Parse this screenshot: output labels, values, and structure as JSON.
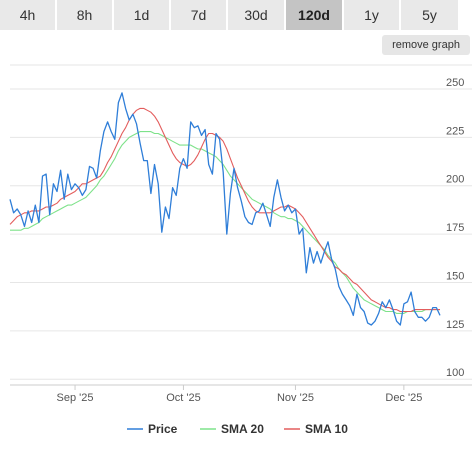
{
  "tabs": [
    {
      "label": "4h",
      "active": false
    },
    {
      "label": "8h",
      "active": false
    },
    {
      "label": "1d",
      "active": false
    },
    {
      "label": "7d",
      "active": false
    },
    {
      "label": "30d",
      "active": false
    },
    {
      "label": "120d",
      "active": true
    },
    {
      "label": "1y",
      "active": false
    },
    {
      "label": "5y",
      "active": false
    }
  ],
  "remove_graph_label": "remove graph",
  "chart_data": {
    "type": "line",
    "title": "",
    "xlabel": "",
    "ylabel": "",
    "x": [
      "2025-08-14",
      "2025-08-15",
      "2025-08-16",
      "2025-08-17",
      "2025-08-18",
      "2025-08-19",
      "2025-08-20",
      "2025-08-21",
      "2025-08-22",
      "2025-08-23",
      "2025-08-24",
      "2025-08-25",
      "2025-08-26",
      "2025-08-27",
      "2025-08-28",
      "2025-08-29",
      "2025-08-30",
      "2025-08-31",
      "2025-09-01",
      "2025-09-02",
      "2025-09-03",
      "2025-09-04",
      "2025-09-05",
      "2025-09-06",
      "2025-09-07",
      "2025-09-08",
      "2025-09-09",
      "2025-09-10",
      "2025-09-11",
      "2025-09-12",
      "2025-09-13",
      "2025-09-14",
      "2025-09-15",
      "2025-09-16",
      "2025-09-17",
      "2025-09-18",
      "2025-09-19",
      "2025-09-20",
      "2025-09-21",
      "2025-09-22",
      "2025-09-23",
      "2025-09-24",
      "2025-09-25",
      "2025-09-26",
      "2025-09-27",
      "2025-09-28",
      "2025-09-29",
      "2025-09-30",
      "2025-10-01",
      "2025-10-02",
      "2025-10-03",
      "2025-10-04",
      "2025-10-05",
      "2025-10-06",
      "2025-10-07",
      "2025-10-08",
      "2025-10-09",
      "2025-10-10",
      "2025-10-11",
      "2025-10-12",
      "2025-10-13",
      "2025-10-14",
      "2025-10-15",
      "2025-10-16",
      "2025-10-17",
      "2025-10-18",
      "2025-10-19",
      "2025-10-20",
      "2025-10-21",
      "2025-10-22",
      "2025-10-23",
      "2025-10-24",
      "2025-10-25",
      "2025-10-26",
      "2025-10-27",
      "2025-10-28",
      "2025-10-29",
      "2025-10-30",
      "2025-10-31",
      "2025-11-01",
      "2025-11-02",
      "2025-11-03",
      "2025-11-04",
      "2025-11-05",
      "2025-11-06",
      "2025-11-07",
      "2025-11-08",
      "2025-11-09",
      "2025-11-10",
      "2025-11-11",
      "2025-11-12",
      "2025-11-13",
      "2025-11-14",
      "2025-11-15",
      "2025-11-16",
      "2025-11-17",
      "2025-11-18",
      "2025-11-19",
      "2025-11-20",
      "2025-11-21",
      "2025-11-22",
      "2025-11-23",
      "2025-11-24",
      "2025-11-25",
      "2025-11-26",
      "2025-11-27",
      "2025-11-28",
      "2025-11-29",
      "2025-11-30",
      "2025-12-01",
      "2025-12-02",
      "2025-12-03",
      "2025-12-04",
      "2025-12-05",
      "2025-12-06",
      "2025-12-07",
      "2025-12-08",
      "2025-12-09",
      "2025-12-10",
      "2025-12-11"
    ],
    "x_ticks": [
      {
        "date": "2025-09-01",
        "label": "Sep '25"
      },
      {
        "date": "2025-10-01",
        "label": "Oct '25"
      },
      {
        "date": "2025-11-01",
        "label": "Nov '25"
      },
      {
        "date": "2025-12-01",
        "label": "Dec '25"
      }
    ],
    "y_ticks": [
      100,
      125,
      150,
      175,
      200,
      225,
      250
    ],
    "ylim": [
      97,
      265
    ],
    "grid": true,
    "legend_position": "bottom",
    "series": [
      {
        "name": "Price",
        "color": "#2f7ed8",
        "values": [
          193,
          186,
          188,
          185,
          179,
          187,
          181,
          190,
          181,
          205,
          206,
          185,
          201,
          197,
          208,
          193,
          206,
          198,
          201,
          199,
          195,
          198,
          210,
          209,
          204,
          218,
          228,
          233,
          228,
          224,
          243,
          248,
          240,
          234,
          237,
          232,
          222,
          213,
          213,
          196,
          211,
          201,
          176,
          189,
          183,
          199,
          195,
          209,
          214,
          209,
          233,
          230,
          231,
          226,
          229,
          211,
          206,
          227,
          224,
          207,
          175,
          196,
          209,
          199,
          192,
          184,
          181,
          180,
          186,
          187,
          191,
          185,
          179,
          194,
          203,
          194,
          187,
          190,
          186,
          188,
          175,
          178,
          155,
          168,
          160,
          166,
          160,
          166,
          171,
          162,
          157,
          148,
          144,
          141,
          138,
          133,
          144,
          137,
          135,
          129,
          128,
          130,
          134,
          140,
          137,
          141,
          136,
          130,
          128,
          139,
          140,
          145,
          135,
          132,
          132,
          130,
          132,
          137,
          137,
          133
        ]
      },
      {
        "name": "SMA 20",
        "color": "#7ee28a",
        "values": [
          177,
          177,
          177,
          177,
          178,
          178,
          179,
          180,
          181,
          183,
          184,
          185,
          186,
          187,
          188,
          189,
          190,
          190,
          191,
          192,
          193,
          194,
          196,
          198,
          200,
          203,
          205,
          208,
          211,
          214,
          218,
          221,
          223,
          225,
          226,
          227,
          228,
          228,
          228,
          228,
          227,
          227,
          226,
          225,
          224,
          223,
          222,
          221,
          221,
          221,
          221,
          220,
          219,
          219,
          218,
          217,
          216,
          215,
          213,
          211,
          208,
          205,
          203,
          201,
          199,
          197,
          195,
          193,
          192,
          191,
          190,
          189,
          188,
          186,
          185,
          184,
          184,
          183,
          183,
          182,
          181,
          179,
          177,
          175,
          173,
          171,
          169,
          167,
          164,
          162,
          160,
          157,
          155,
          153,
          150,
          147,
          145,
          143,
          141,
          140,
          139,
          138,
          137,
          136,
          135,
          135,
          135,
          134,
          134,
          134,
          135,
          135,
          135,
          135,
          135,
          136,
          136,
          136,
          136,
          136
        ]
      },
      {
        "name": "SMA 10",
        "color": "#e35d5d",
        "values": [
          180,
          182,
          184,
          185,
          186,
          186,
          187,
          187,
          187,
          188,
          189,
          189,
          190,
          191,
          193,
          194,
          195,
          196,
          197,
          199,
          201,
          201,
          202,
          203,
          204,
          205,
          208,
          212,
          215,
          219,
          223,
          227,
          230,
          234,
          237,
          239,
          240,
          240,
          239,
          238,
          236,
          233,
          229,
          225,
          221,
          217,
          214,
          212,
          211,
          210,
          211,
          213,
          216,
          220,
          224,
          227,
          227,
          226,
          225,
          223,
          219,
          214,
          209,
          204,
          200,
          196,
          192,
          189,
          187,
          186,
          186,
          186,
          186,
          187,
          188,
          189,
          189,
          190,
          189,
          188,
          186,
          184,
          181,
          178,
          175,
          172,
          169,
          166,
          163,
          161,
          158,
          157,
          155,
          154,
          152,
          150,
          149,
          147,
          145,
          143,
          141,
          140,
          139,
          138,
          137,
          137,
          136,
          136,
          135,
          135,
          135,
          135,
          136,
          136,
          136,
          136,
          136,
          136,
          136,
          136
        ]
      }
    ]
  }
}
